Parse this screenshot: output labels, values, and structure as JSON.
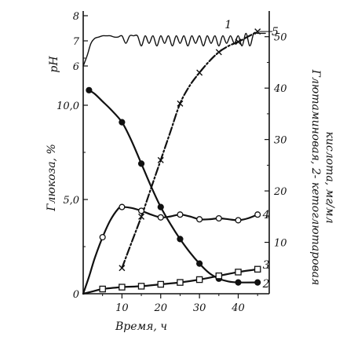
{
  "chart_data": {
    "type": "line",
    "xlabel": "Время, ч",
    "ylabel_left": "Глюкоза, %",
    "ylabel_ph": "pH",
    "ylabel_right": "Глютаминовая, 2- кетоглютаровая кислота, мг/мл",
    "ylabel_right_lines": [
      "Глютаминовая, 2- кетоглютаровая",
      "кислота, мг/мл"
    ],
    "x_ticks": [
      10,
      20,
      30,
      40
    ],
    "x_tick_labels": [
      "10",
      "20",
      "30",
      "40"
    ],
    "xlim": [
      0,
      48
    ],
    "glucose_ticks": [
      0,
      5.0,
      10.0
    ],
    "glucose_tick_labels": [
      "0",
      "5,0",
      "10,0"
    ],
    "glucose_lim": [
      0,
      15
    ],
    "ph_ticks": [
      6,
      7,
      8
    ],
    "ph_tick_labels": [
      "6",
      "7",
      "8"
    ],
    "right_ticks": [
      10,
      20,
      30,
      40,
      50
    ],
    "right_tick_labels": [
      "10",
      "20",
      "30",
      "40",
      "50"
    ],
    "right_lim": [
      0,
      55
    ],
    "series": [
      {
        "name": "1",
        "axis": "ph",
        "marker": "none",
        "curve_points": [
          [
            0,
            6.0
          ],
          [
            1,
            6.4
          ],
          [
            2,
            6.9
          ],
          [
            3,
            7.1
          ],
          [
            4,
            7.15
          ],
          [
            5,
            7.2
          ],
          [
            6,
            7.2
          ],
          [
            7,
            7.2
          ],
          [
            8,
            7.15
          ],
          [
            9,
            7.15
          ],
          [
            10,
            7.2
          ],
          [
            11,
            6.9
          ],
          [
            12,
            7.2
          ],
          [
            13,
            7.2
          ],
          [
            14,
            7.2
          ],
          [
            15,
            6.8
          ],
          [
            16,
            7.2
          ],
          [
            17,
            6.9
          ],
          [
            18,
            7.2
          ],
          [
            19,
            6.8
          ],
          [
            20,
            7.2
          ],
          [
            21,
            6.9
          ],
          [
            22,
            7.2
          ],
          [
            23,
            6.8
          ],
          [
            24,
            7.2
          ],
          [
            25,
            6.9
          ],
          [
            26,
            7.2
          ],
          [
            27,
            6.8
          ],
          [
            28,
            7.2
          ],
          [
            29,
            6.9
          ],
          [
            30,
            7.2
          ],
          [
            31,
            6.8
          ],
          [
            32,
            7.2
          ],
          [
            33,
            6.9
          ],
          [
            34,
            7.2
          ],
          [
            35,
            6.8
          ],
          [
            36,
            7.2
          ],
          [
            37,
            6.9
          ],
          [
            38,
            7.2
          ],
          [
            39,
            6.9
          ],
          [
            40,
            7.2
          ],
          [
            41,
            6.8
          ],
          [
            42,
            7.3
          ],
          [
            43,
            6.8
          ],
          [
            44,
            7.3
          ],
          [
            45,
            7.3
          ],
          [
            47,
            7.3
          ]
        ],
        "label": "1",
        "label_at": [
          36.5,
          7.65
        ]
      },
      {
        "name": "2",
        "axis": "glucose",
        "marker": "filled-circle",
        "x": [
          1.5,
          10,
          15,
          20,
          25,
          30,
          35,
          40,
          45
        ],
        "y": [
          10.8,
          9.1,
          6.9,
          4.6,
          2.9,
          1.6,
          0.8,
          0.6,
          0.6
        ],
        "curve_points": [
          [
            1.5,
            10.8
          ],
          [
            3,
            10.6
          ],
          [
            5,
            10.2
          ],
          [
            7,
            9.8
          ],
          [
            10,
            9.1
          ],
          [
            12.5,
            8.1
          ],
          [
            15,
            6.9
          ],
          [
            17.5,
            5.7
          ],
          [
            20,
            4.6
          ],
          [
            22.5,
            3.7
          ],
          [
            25,
            2.9
          ],
          [
            27.5,
            2.2
          ],
          [
            30,
            1.6
          ],
          [
            32.5,
            1.1
          ],
          [
            35,
            0.8
          ],
          [
            37.5,
            0.65
          ],
          [
            40,
            0.6
          ],
          [
            45,
            0.6
          ]
        ],
        "label": "2",
        "label_at": [
          46.3,
          0.55
        ]
      },
      {
        "name": "3",
        "axis": "glucose",
        "marker": "open-square",
        "x": [
          5,
          10,
          15,
          20,
          25,
          30,
          35,
          40,
          45
        ],
        "y": [
          0.25,
          0.35,
          0.4,
          0.5,
          0.6,
          0.75,
          0.95,
          1.15,
          1.3
        ],
        "curve_points": [
          [
            0,
            0
          ],
          [
            2,
            0.1
          ],
          [
            5,
            0.25
          ],
          [
            10,
            0.35
          ],
          [
            15,
            0.4
          ],
          [
            20,
            0.5
          ],
          [
            25,
            0.6
          ],
          [
            30,
            0.75
          ],
          [
            35,
            0.95
          ],
          [
            40,
            1.15
          ],
          [
            45,
            1.3
          ]
        ],
        "label": "3",
        "label_at": [
          46.3,
          1.55
        ]
      },
      {
        "name": "4",
        "axis": "glucose",
        "marker": "open-circle",
        "x": [
          5,
          10,
          15,
          20,
          25,
          30,
          35,
          40,
          45
        ],
        "y": [
          3.0,
          4.6,
          4.4,
          4.05,
          4.2,
          3.95,
          4.0,
          3.9,
          4.2
        ],
        "curve_points": [
          [
            0,
            0
          ],
          [
            1.5,
            0.9
          ],
          [
            3,
            1.9
          ],
          [
            5,
            3.0
          ],
          [
            7,
            3.9
          ],
          [
            9,
            4.5
          ],
          [
            10,
            4.6
          ],
          [
            12.5,
            4.55
          ],
          [
            15,
            4.4
          ],
          [
            17.5,
            4.2
          ],
          [
            20,
            4.05
          ],
          [
            22.5,
            4.1
          ],
          [
            25,
            4.2
          ],
          [
            27.5,
            4.1
          ],
          [
            30,
            3.95
          ],
          [
            32.5,
            3.95
          ],
          [
            35,
            4.0
          ],
          [
            37.5,
            3.95
          ],
          [
            40,
            3.9
          ],
          [
            42.5,
            4.0
          ],
          [
            45,
            4.2
          ]
        ],
        "label": "4",
        "label_at": [
          46.3,
          4.2
        ]
      },
      {
        "name": "5",
        "axis": "right",
        "marker": "cross",
        "x": [
          10,
          15,
          20,
          25,
          30,
          35,
          40,
          45
        ],
        "y": [
          5,
          15,
          26,
          37,
          43,
          47,
          49,
          51
        ],
        "curve_points": [
          [
            10,
            5
          ],
          [
            12.5,
            10
          ],
          [
            15,
            15
          ],
          [
            17.5,
            20.5
          ],
          [
            20,
            26
          ],
          [
            22.5,
            31.5
          ],
          [
            25,
            37
          ],
          [
            27.5,
            40.5
          ],
          [
            30,
            43
          ],
          [
            32.5,
            45.2
          ],
          [
            35,
            47
          ],
          [
            37.5,
            48.2
          ],
          [
            40,
            49
          ],
          [
            42.5,
            50
          ],
          [
            45,
            51
          ]
        ],
        "dashed": true,
        "label": "5",
        "label_at": [
          48.6,
          51
        ]
      }
    ]
  }
}
